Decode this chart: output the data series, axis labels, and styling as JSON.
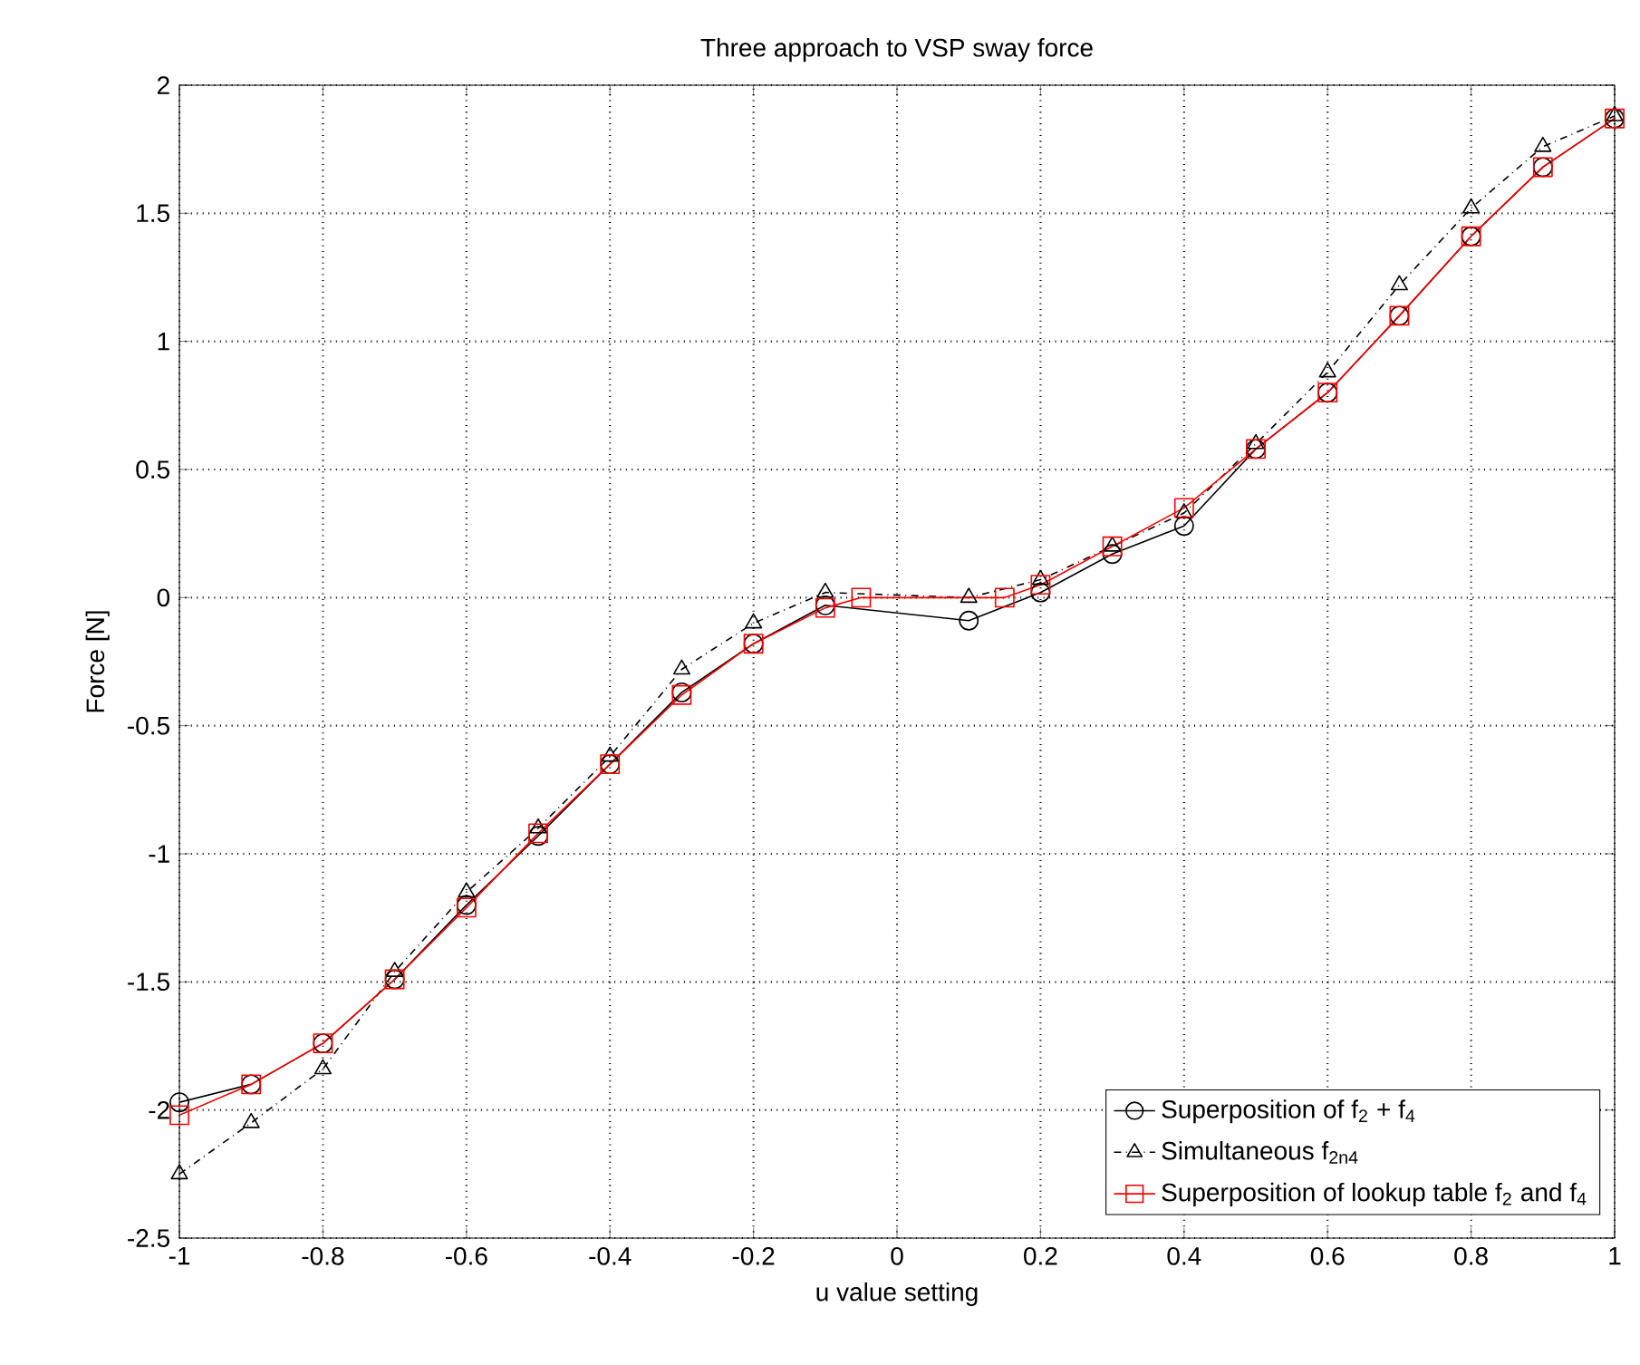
{
  "chart_data": {
    "type": "line",
    "title": "Three approach to VSP sway force",
    "xlabel": "u value setting",
    "ylabel": "Force [N]",
    "xlim": [
      -1,
      1
    ],
    "ylim": [
      -2.5,
      2
    ],
    "xticks": [
      -1,
      -0.8,
      -0.6,
      -0.4,
      -0.2,
      0,
      0.2,
      0.4,
      0.6,
      0.8,
      1
    ],
    "yticks": [
      -2.5,
      -2,
      -1.5,
      -1,
      -0.5,
      0,
      0.5,
      1,
      1.5,
      2
    ],
    "grid": true,
    "legend": "bottom right",
    "series": [
      {
        "name": "Superposition of f$_{2}$ + f$_{4}$",
        "color": "#000000",
        "marker": "circle",
        "line_style": "solid",
        "x": [
          -1,
          -0.9,
          -0.8,
          -0.7,
          -0.6,
          -0.5,
          -0.4,
          -0.3,
          -0.2,
          -0.1,
          0.1,
          0.2,
          0.3,
          0.4,
          0.5,
          0.6,
          0.7,
          0.8,
          0.9,
          1
        ],
        "values": [
          -1.97,
          -1.9,
          -1.74,
          -1.49,
          -1.2,
          -0.93,
          -0.65,
          -0.37,
          -0.18,
          -0.03,
          -0.09,
          0.02,
          0.17,
          0.28,
          0.58,
          0.8,
          1.1,
          1.41,
          1.68,
          1.87
        ]
      },
      {
        "name": "Simultaneous f$_{2n4}$",
        "color": "#000000",
        "marker": "triangle",
        "line_style": "dashed",
        "x": [
          -1,
          -0.9,
          -0.8,
          -0.7,
          -0.6,
          -0.5,
          -0.4,
          -0.3,
          -0.2,
          -0.1,
          0.1,
          0.2,
          0.3,
          0.4,
          0.5,
          0.6,
          0.7,
          0.8,
          0.9,
          1
        ],
        "values": [
          -2.25,
          -2.05,
          -1.84,
          -1.46,
          -1.15,
          -0.9,
          -0.62,
          -0.28,
          -0.1,
          0.02,
          0.0,
          0.07,
          0.2,
          0.33,
          0.6,
          0.88,
          1.22,
          1.52,
          1.76,
          1.88
        ]
      },
      {
        "name": "Superposition of lookup table f$_{2}$ and f$_{4}$",
        "color": "#ff0000",
        "marker": "square",
        "line_style": "solid",
        "x": [
          -1,
          -0.9,
          -0.8,
          -0.7,
          -0.6,
          -0.5,
          -0.4,
          -0.3,
          -0.2,
          -0.1,
          -0.05,
          0.15,
          0.2,
          0.3,
          0.4,
          0.5,
          0.6,
          0.7,
          0.8,
          0.9,
          1
        ],
        "values": [
          -2.02,
          -1.9,
          -1.74,
          -1.49,
          -1.21,
          -0.92,
          -0.65,
          -0.38,
          -0.18,
          -0.04,
          0.0,
          0.0,
          0.05,
          0.2,
          0.35,
          0.58,
          0.8,
          1.1,
          1.41,
          1.68,
          1.87
        ]
      }
    ]
  }
}
